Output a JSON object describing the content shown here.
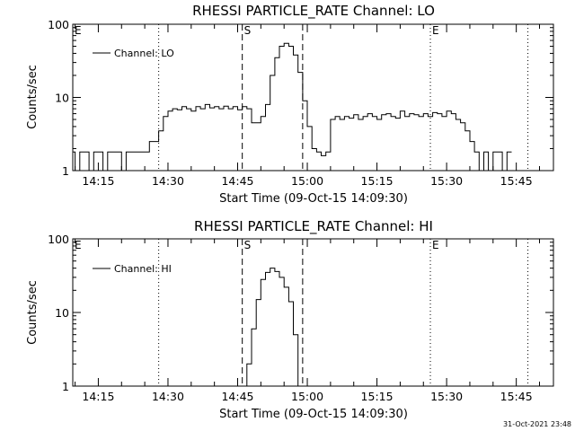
{
  "chart_data": [
    {
      "type": "line",
      "title": "RHESSI PARTICLE_RATE Channel: LO",
      "xlabel": "Start Time (09-Oct-15 14:09:30)",
      "ylabel": "Counts/sec",
      "y_scale": "log",
      "ylim": [
        1,
        100
      ],
      "xlim": [
        "14:09:30",
        "15:53:00"
      ],
      "x_ticks": [
        "14:15",
        "14:30",
        "14:45",
        "15:00",
        "15:15",
        "15:30",
        "15:45"
      ],
      "y_ticks": [
        "1",
        "10",
        "100"
      ],
      "legend": {
        "position": "top-left",
        "entries": [
          "Channel: LO"
        ]
      },
      "markers": [
        {
          "label": "E",
          "time": "14:09:30",
          "style": "dotted"
        },
        {
          "label": "",
          "time": "14:28:00",
          "style": "dotted"
        },
        {
          "label": "S",
          "time": "14:46:00",
          "style": "dashed"
        },
        {
          "label": "",
          "time": "14:59:00",
          "style": "dashed"
        },
        {
          "label": "E",
          "time": "15:26:30",
          "style": "dotted"
        },
        {
          "label": "",
          "time": "15:47:30",
          "style": "dotted"
        }
      ],
      "series": [
        {
          "name": "Channel: LO",
          "x": [
            "14:09:30",
            "14:10:00",
            "14:11:00",
            "14:12:00",
            "14:13:00",
            "14:14:00",
            "14:15:00",
            "14:16:00",
            "14:17:00",
            "14:18:00",
            "14:19:00",
            "14:20:00",
            "14:21:00",
            "14:22:00",
            "14:23:00",
            "14:24:00",
            "14:25:00",
            "14:26:00",
            "14:27:00",
            "14:28:00",
            "14:29:00",
            "14:30:00",
            "14:31:00",
            "14:32:00",
            "14:33:00",
            "14:34:00",
            "14:35:00",
            "14:36:00",
            "14:37:00",
            "14:38:00",
            "14:39:00",
            "14:40:00",
            "14:41:00",
            "14:42:00",
            "14:43:00",
            "14:44:00",
            "14:45:00",
            "14:46:00",
            "14:47:00",
            "14:48:00",
            "14:49:00",
            "14:50:00",
            "14:51:00",
            "14:52:00",
            "14:53:00",
            "14:54:00",
            "14:55:00",
            "14:56:00",
            "14:57:00",
            "14:58:00",
            "14:59:00",
            "15:00:00",
            "15:01:00",
            "15:02:00",
            "15:03:00",
            "15:04:00",
            "15:05:00",
            "15:06:00",
            "15:07:00",
            "15:08:00",
            "15:09:00",
            "15:10:00",
            "15:11:00",
            "15:12:00",
            "15:13:00",
            "15:14:00",
            "15:15:00",
            "15:16:00",
            "15:17:00",
            "15:18:00",
            "15:19:00",
            "15:20:00",
            "15:21:00",
            "15:22:00",
            "15:23:00",
            "15:24:00",
            "15:25:00",
            "15:26:00",
            "15:27:00",
            "15:28:00",
            "15:29:00",
            "15:30:00",
            "15:31:00",
            "15:32:00",
            "15:33:00",
            "15:34:00",
            "15:35:00",
            "15:36:00",
            "15:37:00",
            "15:38:00",
            "15:39:00",
            "15:40:00",
            "15:41:00",
            "15:42:00",
            "15:43:00"
          ],
          "y": [
            1.8,
            1,
            1.8,
            1.8,
            1,
            1.8,
            1.8,
            1,
            1.8,
            1.8,
            1.8,
            1,
            1.8,
            1.8,
            1.8,
            1.8,
            1.8,
            2.5,
            2.5,
            3.5,
            5.5,
            6.5,
            7,
            6.8,
            7.5,
            7,
            6.5,
            7.5,
            7,
            8,
            7.2,
            7.5,
            7,
            7.6,
            7,
            7.5,
            6.8,
            7.5,
            7,
            4.5,
            4.5,
            5.5,
            8,
            20,
            35,
            50,
            55,
            50,
            38,
            22,
            9,
            4,
            2,
            1.8,
            1.6,
            1.8,
            5,
            5.5,
            5,
            5.5,
            5.2,
            5.8,
            5,
            5.5,
            6,
            5.5,
            5,
            5.8,
            6,
            5.5,
            5.2,
            6.5,
            5.5,
            6,
            5.8,
            5.5,
            6,
            5.5,
            6.2,
            6,
            5.5,
            6.5,
            6,
            5,
            4.5,
            3.5,
            2.5,
            1.8,
            1,
            1.8,
            1,
            1.8,
            1.8,
            1,
            1.8
          ]
        }
      ]
    },
    {
      "type": "line",
      "title": "RHESSI PARTICLE_RATE Channel: HI",
      "xlabel": "Start Time (09-Oct-15 14:09:30)",
      "ylabel": "Counts/sec",
      "y_scale": "log",
      "ylim": [
        1,
        100
      ],
      "xlim": [
        "14:09:30",
        "15:53:00"
      ],
      "x_ticks": [
        "14:15",
        "14:30",
        "14:45",
        "15:00",
        "15:15",
        "15:30",
        "15:45"
      ],
      "y_ticks": [
        "1",
        "10",
        "100"
      ],
      "legend": {
        "position": "top-left",
        "entries": [
          "Channel: HI"
        ]
      },
      "markers": [
        {
          "label": "E",
          "time": "14:09:30",
          "style": "dotted"
        },
        {
          "label": "",
          "time": "14:28:00",
          "style": "dotted"
        },
        {
          "label": "S",
          "time": "14:46:00",
          "style": "dashed"
        },
        {
          "label": "",
          "time": "14:59:00",
          "style": "dashed"
        },
        {
          "label": "E",
          "time": "15:26:30",
          "style": "dotted"
        },
        {
          "label": "",
          "time": "15:47:30",
          "style": "dotted"
        }
      ],
      "series": [
        {
          "name": "Channel: HI",
          "x": [
            "14:46:30",
            "14:47:00",
            "14:48:00",
            "14:49:00",
            "14:50:00",
            "14:51:00",
            "14:52:00",
            "14:53:00",
            "14:54:00",
            "14:55:00",
            "14:56:00",
            "14:57:00",
            "14:58:00"
          ],
          "y": [
            1,
            2,
            6,
            15,
            28,
            35,
            40,
            36,
            30,
            22,
            14,
            5,
            1
          ]
        }
      ]
    }
  ],
  "footer": {
    "timestamp": "31-Oct-2021 23:48"
  }
}
